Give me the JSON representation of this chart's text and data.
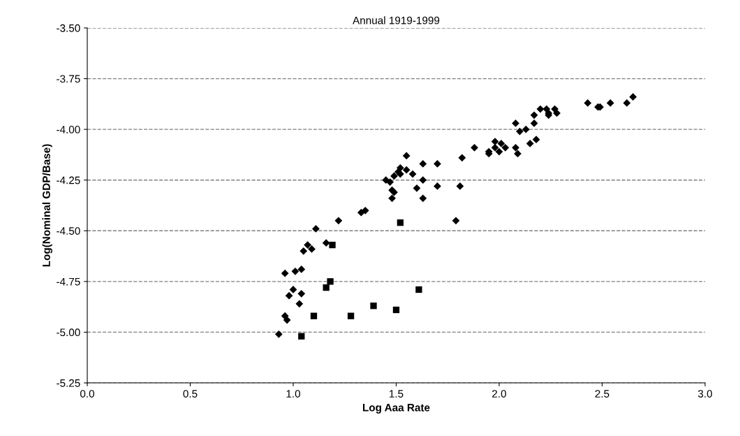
{
  "chart_data": {
    "type": "scatter",
    "title": "Annual 1919-1999",
    "xlabel": "Log Aaa Rate",
    "ylabel": "Log(Nominal GDP/Base)",
    "xlim": [
      0,
      3
    ],
    "xticks": [
      {
        "value": 0,
        "label": "0.0"
      },
      {
        "value": 0.5,
        "label": "0.5"
      },
      {
        "value": 1,
        "label": "1.0"
      },
      {
        "value": 1.5,
        "label": "1.5"
      },
      {
        "value": 2,
        "label": "2.0"
      },
      {
        "value": 2.5,
        "label": "2.5"
      },
      {
        "value": 3,
        "label": "3.0"
      }
    ],
    "ylim": [
      -5.25,
      -3.5
    ],
    "yticks": [
      {
        "value": -5.25,
        "label": "-5.25"
      },
      {
        "value": -5.0,
        "label": "-5.00"
      },
      {
        "value": -4.75,
        "label": "-4.75"
      },
      {
        "value": -4.5,
        "label": "-4.50"
      },
      {
        "value": -4.25,
        "label": "-4.25"
      },
      {
        "value": -4.0,
        "label": "-4.00"
      },
      {
        "value": -3.75,
        "label": "-3.75"
      },
      {
        "value": -3.5,
        "label": "-3.50"
      }
    ],
    "grid": "y",
    "line_style": "dashed",
    "series": [
      {
        "color": "#000000",
        "marker": "diamond",
        "x": [
          0.93,
          0.96,
          0.97,
          0.96,
          0.98,
          1.0,
          1.01,
          1.03,
          1.04,
          1.04,
          1.05,
          1.07,
          1.09,
          1.11,
          1.16,
          1.22,
          1.33,
          1.35,
          1.45,
          1.47,
          1.48,
          1.49,
          1.48,
          1.49,
          1.51,
          1.52,
          1.52,
          1.55,
          1.55,
          1.58,
          1.6,
          1.63,
          1.63,
          1.63,
          1.7,
          1.7,
          1.79,
          1.81,
          1.82,
          1.88,
          1.95,
          1.95,
          1.98,
          1.98,
          2.0,
          2.01,
          2.03,
          2.08,
          2.08,
          2.09,
          2.1,
          2.13,
          2.15,
          2.17,
          2.17,
          2.18,
          2.2,
          2.23,
          2.24,
          2.24,
          2.27,
          2.28,
          2.43,
          2.48,
          2.49,
          2.54,
          2.62,
          2.65
        ],
        "values": [
          -5.01,
          -4.92,
          -4.94,
          -4.71,
          -4.82,
          -4.79,
          -4.7,
          -4.86,
          -4.81,
          -4.69,
          -4.6,
          -4.57,
          -4.59,
          -4.49,
          -4.56,
          -4.45,
          -4.41,
          -4.4,
          -4.25,
          -4.26,
          -4.3,
          -4.31,
          -4.34,
          -4.23,
          -4.21,
          -4.19,
          -4.22,
          -4.2,
          -4.13,
          -4.22,
          -4.29,
          -4.17,
          -4.25,
          -4.34,
          -4.17,
          -4.28,
          -4.45,
          -4.28,
          -4.14,
          -4.09,
          -4.12,
          -4.11,
          -4.09,
          -4.06,
          -4.11,
          -4.07,
          -4.09,
          -3.97,
          -4.09,
          -4.12,
          -4.01,
          -4.0,
          -4.07,
          -3.93,
          -3.97,
          -4.05,
          -3.9,
          -3.9,
          -3.92,
          -3.93,
          -3.9,
          -3.92,
          -3.87,
          -3.89,
          -3.89,
          -3.87,
          -3.87,
          -3.84
        ]
      },
      {
        "color": "#000000",
        "marker": "square",
        "x": [
          1.04,
          1.1,
          1.16,
          1.18,
          1.19,
          1.28,
          1.39,
          1.5,
          1.52,
          1.61
        ],
        "values": [
          -5.02,
          -4.92,
          -4.78,
          -4.75,
          -4.57,
          -4.92,
          -4.87,
          -4.89,
          -4.46,
          -4.79
        ]
      }
    ]
  }
}
